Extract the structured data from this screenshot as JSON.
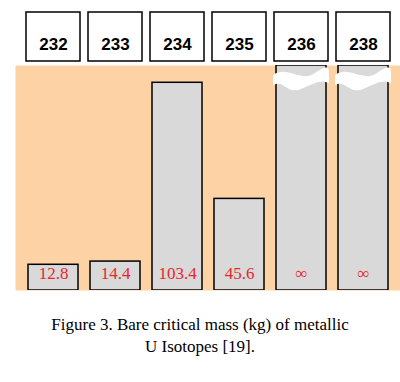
{
  "chart_data": {
    "type": "bar",
    "title": "Figure 3. Bare critical mass (kg) of metallic U Isotopes [19].",
    "categories": [
      "232",
      "233",
      "234",
      "235",
      "236",
      "238"
    ],
    "values": [
      12.8,
      14.4,
      103.4,
      45.6,
      null,
      null
    ],
    "value_labels": [
      "12.8",
      "14.4",
      "103.4",
      "45.6",
      "∞",
      "∞"
    ],
    "color": "#d9d9d9",
    "ylim": [
      0,
      112
    ],
    "data_labels": true,
    "tick_labels": "x"
  }
}
